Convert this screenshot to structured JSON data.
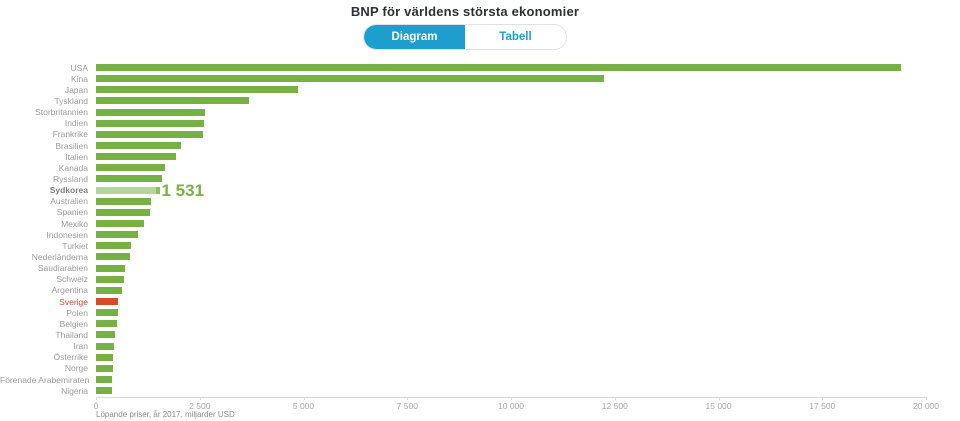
{
  "header": {
    "title": "BNP för världens största ekonomier"
  },
  "toggle": {
    "diagram_label": "Diagram",
    "tabell_label": "Tabell",
    "active": "Diagram",
    "accent_blue": "#1d9ecd"
  },
  "chart_data": {
    "type": "bar",
    "orientation": "horizontal",
    "title": "BNP för världens största ekonomier",
    "categories": [
      "USA",
      "Kina",
      "Japan",
      "Tyskland",
      "Storbritannien",
      "Indien",
      "Frankrike",
      "Brasilien",
      "Italien",
      "Kanada",
      "Ryssland",
      "Sydkorea",
      "Australien",
      "Spanien",
      "Mexiko",
      "Indonesien",
      "Turkiet",
      "Nederländerna",
      "Saudiarabien",
      "Schweiz",
      "Argentina",
      "Sverige",
      "Polen",
      "Belgien",
      "Thailand",
      "Iran",
      "Österrike",
      "Norge",
      "Förenade Arabemiraten",
      "Nigeria"
    ],
    "values": [
      19390,
      12238,
      4872,
      3677,
      2622,
      2597,
      2583,
      2056,
      1935,
      1653,
      1578,
      1531,
      1323,
      1311,
      1150,
      1016,
      851,
      826,
      687,
      679,
      637,
      538,
      526,
      493,
      455,
      440,
      417,
      399,
      383,
      376
    ],
    "highlighted": {
      "category": "Sydkorea",
      "value_label": "1 531"
    },
    "negative_highlight": {
      "category": "Sverige"
    },
    "xlim": [
      0,
      20000
    ],
    "xlabel_ticks": [
      "0",
      "2 500",
      "5 000",
      "7 500",
      "10 000",
      "12 500",
      "15 000",
      "17 500",
      "20 000"
    ],
    "grid": false,
    "footnote": "Löpande priser, år 2017, miljarder USD",
    "colors": {
      "bar": "#77b143",
      "bar_highlight": "#b5d795",
      "bar_highlight_edge": "#8ac05b",
      "bar_negative": "#d9492c",
      "value_label": "#77b143"
    }
  }
}
